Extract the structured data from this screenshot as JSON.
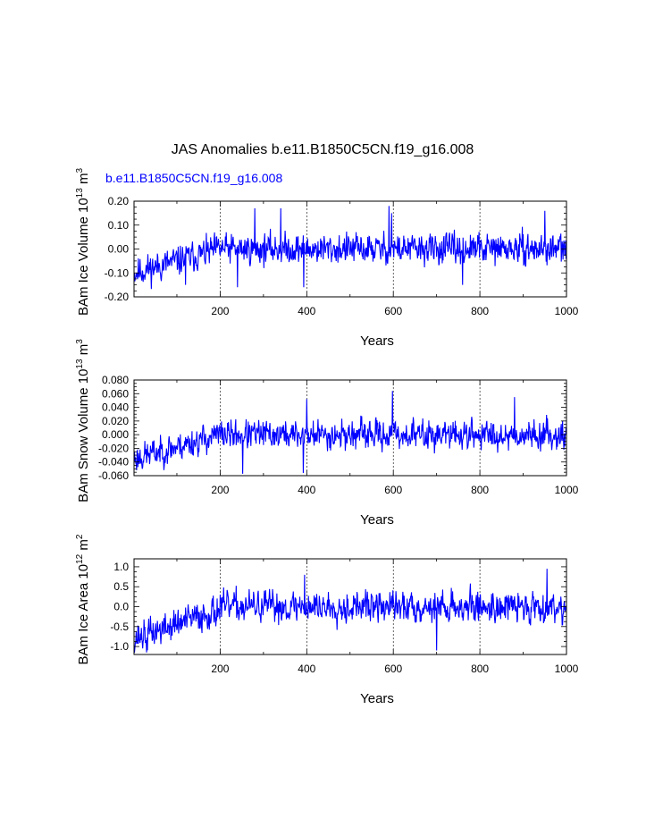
{
  "title": "JAS Anomalies b.e11.B1850C5CN.f19_g16.008",
  "series_label": "b.e11.B1850C5CN.f19_g16.008",
  "colors": {
    "line": "#0000ff",
    "axis": "#000000",
    "subtitle": "#0000ff"
  },
  "chart_data": [
    {
      "type": "line",
      "ylabel": "BAm Ice Volume 10",
      "ylabel_exp": "13",
      "ylabel_unit": " m",
      "ylabel_unit_exp": "3",
      "xlabel": "Years",
      "xlim": [
        1,
        1000
      ],
      "ylim": [
        -0.2,
        0.2
      ],
      "xticks": [
        200,
        400,
        600,
        800,
        1000
      ],
      "xtick_labels": [
        "200",
        "400",
        "600",
        "800",
        "1000"
      ],
      "yticks": [
        -0.2,
        -0.1,
        0.0,
        0.1,
        0.2
      ],
      "ytick_labels": [
        "-0.20",
        "-0.10",
        "0.00",
        "0.10",
        "0.20"
      ],
      "vlines": [
        200,
        400,
        600,
        800
      ],
      "series": [
        {
          "name": "b.e11.B1850C5CN.f19_g16.008",
          "trend_start": -0.1,
          "trend_end": 0.0,
          "trend_year": 200,
          "noise_amp": 0.12,
          "seed": 11,
          "peaks": [
            [
              280,
              0.17
            ],
            [
              340,
              0.17
            ],
            [
              393,
              -0.16
            ],
            [
              590,
              0.18
            ],
            [
              596,
              0.15
            ],
            [
              120,
              -0.15
            ],
            [
              240,
              -0.16
            ],
            [
              760,
              -0.15
            ],
            [
              950,
              0.16
            ]
          ]
        }
      ]
    },
    {
      "type": "line",
      "ylabel": "BAm Snow Volume 10",
      "ylabel_exp": "13",
      "ylabel_unit": " m",
      "ylabel_unit_exp": "3",
      "xlabel": "Years",
      "xlim": [
        1,
        1000
      ],
      "ylim": [
        -0.06,
        0.08
      ],
      "xticks": [
        200,
        400,
        600,
        800,
        1000
      ],
      "xtick_labels": [
        "200",
        "400",
        "600",
        "800",
        "1000"
      ],
      "yticks": [
        -0.06,
        -0.04,
        -0.02,
        0.0,
        0.02,
        0.04,
        0.06,
        0.08
      ],
      "ytick_labels": [
        "-0.060",
        "-0.040",
        "-0.020",
        "0.000",
        "0.020",
        "0.040",
        "0.060",
        "0.080"
      ],
      "vlines": [
        200,
        400,
        600,
        800
      ],
      "series": [
        {
          "name": "b.e11.B1850C5CN.f19_g16.008",
          "trend_start": -0.035,
          "trend_end": 0.0,
          "trend_year": 200,
          "noise_amp": 0.04,
          "seed": 23,
          "peaks": [
            [
              598,
              0.064
            ],
            [
              252,
              -0.058
            ],
            [
              392,
              -0.056
            ],
            [
              400,
              0.052
            ],
            [
              20,
              -0.05
            ],
            [
              880,
              0.055
            ]
          ]
        }
      ]
    },
    {
      "type": "line",
      "ylabel": "BAm Ice Area 10",
      "ylabel_exp": "12",
      "ylabel_unit": " m",
      "ylabel_unit_exp": "2",
      "xlabel": "Years",
      "xlim": [
        1,
        1000
      ],
      "ylim": [
        -1.2,
        1.2
      ],
      "xticks": [
        200,
        400,
        600,
        800,
        1000
      ],
      "xtick_labels": [
        "200",
        "400",
        "600",
        "800",
        "1000"
      ],
      "yticks": [
        -1.0,
        -0.5,
        0.0,
        0.5,
        1.0
      ],
      "ytick_labels": [
        "-1.0",
        "-0.5",
        "0.0",
        "0.5",
        "1.0"
      ],
      "vlines": [
        200,
        400,
        600,
        800
      ],
      "series": [
        {
          "name": "b.e11.B1850C5CN.f19_g16.008",
          "trend_start": -0.8,
          "trend_end": 0.0,
          "trend_year": 220,
          "noise_amp": 0.75,
          "seed": 37,
          "peaks": [
            [
              30,
              -1.15
            ],
            [
              700,
              -1.1
            ],
            [
              955,
              0.95
            ],
            [
              395,
              0.8
            ],
            [
              200,
              0.3
            ]
          ]
        }
      ]
    }
  ]
}
